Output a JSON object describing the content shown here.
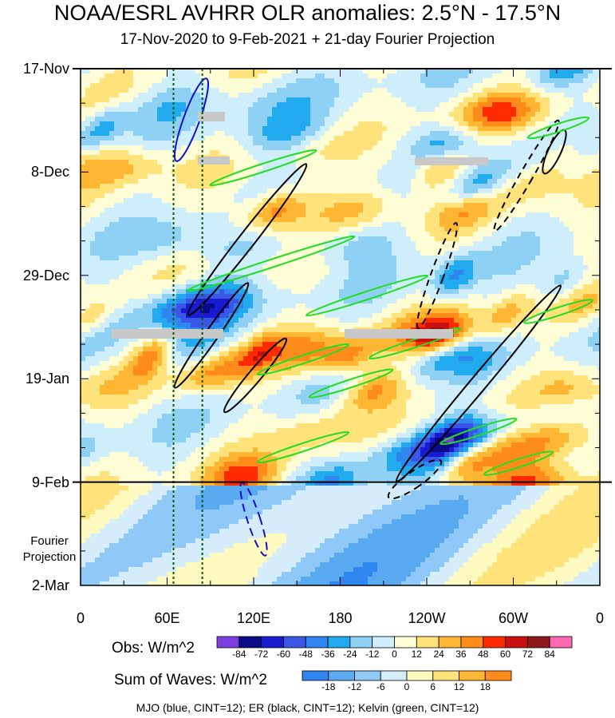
{
  "title": "NOAA/ESRL AVHRR OLR anomalies: 2.5°N - 17.5°N",
  "subtitle": "17-Nov-2020 to 9-Feb-2021 + 21-day Fourier Projection",
  "footnote": "MJO (blue, CINT=12); ER (black, CINT=12); Kelvin (green, CINT=12)",
  "chart_data": {
    "type": "heatmap",
    "xlabel": "",
    "ylabel": "",
    "x_ticks": [
      "0",
      "60E",
      "120E",
      "180",
      "120W",
      "60W",
      "0"
    ],
    "x_tick_lons": [
      0,
      60,
      120,
      180,
      240,
      300,
      360
    ],
    "y_ticks": [
      "17-Nov",
      "8-Dec",
      "29-Dec",
      "19-Jan",
      "9-Feb",
      "2-Mar"
    ],
    "y_tick_days": [
      0,
      21,
      42,
      63,
      84,
      105
    ],
    "projection_label": [
      "Fourier",
      "Projection"
    ],
    "projection_start_day": 84,
    "reference_lons": [
      60,
      80
    ],
    "obs_colorbar": {
      "label": "Obs: W/m^2",
      "levels": [
        -84,
        -72,
        -60,
        -48,
        -36,
        -24,
        -12,
        0,
        12,
        24,
        36,
        48,
        60,
        72,
        84
      ],
      "colors": [
        "#7b3fe0",
        "#0b0b8a",
        "#1a1ad0",
        "#3a56e6",
        "#2e86ee",
        "#22aaee",
        "#8fd1f5",
        "#cfeefb",
        "#fffdd6",
        "#ffe27a",
        "#ffb733",
        "#ff8c1a",
        "#ff2a00",
        "#c81010",
        "#8c1a1a",
        "#ff69b4"
      ]
    },
    "waves_colorbar": {
      "label": "Sum of Waves: W/m^2",
      "levels": [
        -18,
        -12,
        -6,
        0,
        6,
        12,
        18
      ],
      "colors": [
        "#2e86ee",
        "#5aaaf2",
        "#8fc9f7",
        "#d5ecfb",
        "#fffac0",
        "#ffe27a",
        "#ffb733",
        "#ff8c1a"
      ]
    },
    "wave_contours": {
      "MJO": "blue",
      "ER": "black",
      "Kelvin": "green"
    }
  }
}
